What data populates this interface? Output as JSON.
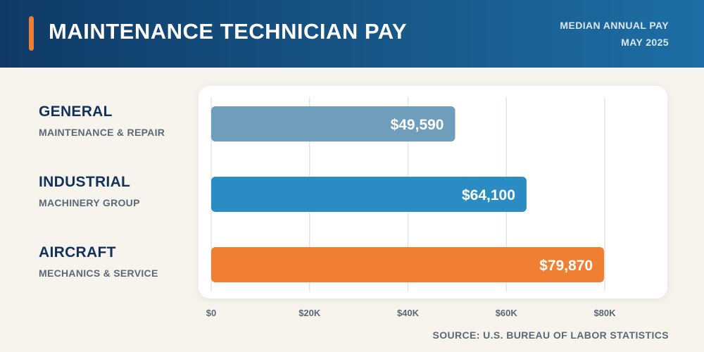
{
  "header": {
    "title": "MAINTENANCE TECHNICIAN PAY",
    "subtitle_line1": "MEDIAN ANNUAL PAY",
    "subtitle_line2": "MAY 2025"
  },
  "footer": {
    "source": "SOURCE: U.S. BUREAU OF LABOR STATISTICS"
  },
  "colors": {
    "header_start": "#0f3a66",
    "header_end": "#1d6ea6",
    "accent": "#ef7d32"
  },
  "chart_data": {
    "type": "bar",
    "orientation": "horizontal",
    "title": "MAINTENANCE TECHNICIAN PAY",
    "subtitle": "MEDIAN ANNUAL PAY MAY 2025",
    "categories": [
      {
        "name": "GENERAL",
        "sub": "MAINTENANCE & REPAIR"
      },
      {
        "name": "INDUSTRIAL",
        "sub": "MACHINERY GROUP"
      },
      {
        "name": "AIRCRAFT",
        "sub": "MECHANICS & SERVICE"
      }
    ],
    "values": [
      49590,
      64100,
      79870
    ],
    "value_labels": [
      "$49,590",
      "$64,100",
      "$79,870"
    ],
    "bar_colors": [
      "#6e9ebb",
      "#2b8cc4",
      "#f07f32"
    ],
    "xlim": [
      0,
      80000
    ],
    "xticks": [
      0,
      20000,
      40000,
      60000,
      80000
    ],
    "xtick_labels": [
      "$0",
      "$20K",
      "$40K",
      "$60K",
      "$80K"
    ],
    "grid": true,
    "legend": "none"
  }
}
